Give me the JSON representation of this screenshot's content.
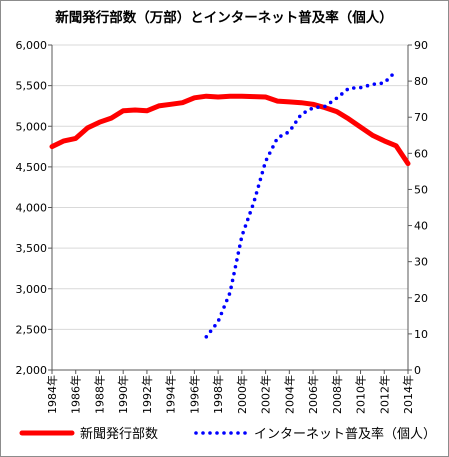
{
  "chart_data": {
    "type": "line",
    "title": "新聞発行部数（万部）とインターネット普及率（個人）",
    "grid": true,
    "legend_position": "bottom",
    "x_tick_labels": [
      "1984年",
      "1986年",
      "1988年",
      "1990年",
      "1992年",
      "1994年",
      "1996年",
      "1998年",
      "2000年",
      "2002年",
      "2004年",
      "2006年",
      "2008年",
      "2010年",
      "2012年",
      "2014年"
    ],
    "x_range": [
      1984,
      2014
    ],
    "y_left": {
      "range": [
        2000,
        6000
      ],
      "ticks": [
        "2,000",
        "2,500",
        "3,000",
        "3,500",
        "4,000",
        "4,500",
        "5,000",
        "5,500",
        "6,000"
      ],
      "tick_values": [
        2000,
        2500,
        3000,
        3500,
        4000,
        4500,
        5000,
        5500,
        6000
      ]
    },
    "y_right": {
      "range": [
        0,
        90
      ],
      "ticks": [
        "0",
        "10",
        "20",
        "30",
        "40",
        "50",
        "60",
        "70",
        "80",
        "90"
      ],
      "tick_values": [
        0,
        10,
        20,
        30,
        40,
        50,
        60,
        70,
        80,
        90
      ]
    },
    "series": [
      {
        "name": "新聞発行部数",
        "axis": "left",
        "color": "#ff0000",
        "style": "solid",
        "x": [
          1984,
          1985,
          1986,
          1987,
          1988,
          1989,
          1990,
          1991,
          1992,
          1993,
          1994,
          1995,
          1996,
          1997,
          1998,
          1999,
          2000,
          2001,
          2002,
          2003,
          2004,
          2005,
          2006,
          2007,
          2008,
          2009,
          2010,
          2011,
          2012,
          2013,
          2014
        ],
        "values": [
          4750,
          4820,
          4850,
          4980,
          5050,
          5100,
          5190,
          5200,
          5190,
          5250,
          5270,
          5290,
          5350,
          5370,
          5360,
          5370,
          5370,
          5365,
          5360,
          5310,
          5300,
          5290,
          5270,
          5230,
          5180,
          5090,
          4990,
          4890,
          4820,
          4760,
          4540
        ]
      },
      {
        "name": "インターネット普及率（個人）",
        "axis": "right",
        "color": "#0000ff",
        "style": "dotted",
        "x": [
          1997,
          1998,
          1999,
          2000,
          2001,
          2002,
          2003,
          2004,
          2005,
          2006,
          2007,
          2008,
          2009,
          2010,
          2011,
          2012,
          2013
        ],
        "values": [
          9.2,
          13.4,
          21.4,
          37.1,
          46.3,
          57.8,
          64.3,
          66.0,
          70.8,
          72.6,
          73.0,
          75.3,
          78.0,
          78.2,
          79.1,
          79.5,
          82.8
        ]
      }
    ]
  }
}
